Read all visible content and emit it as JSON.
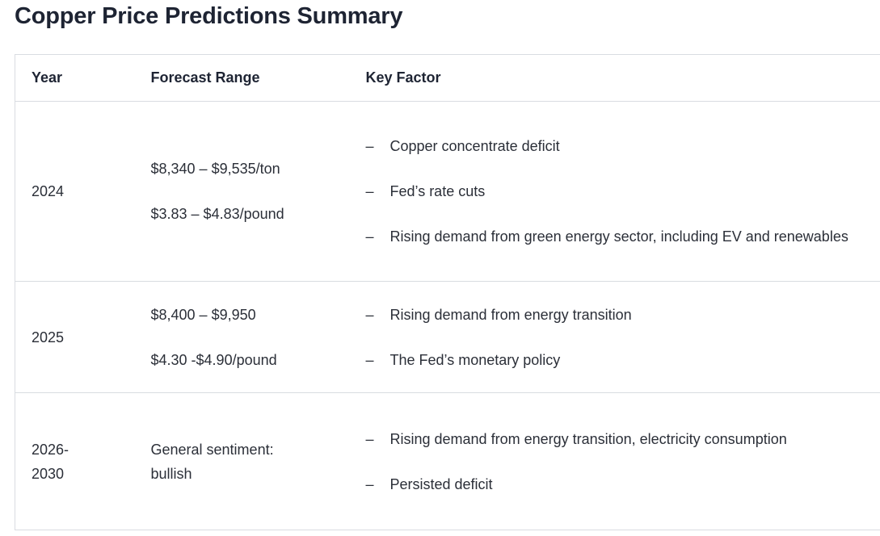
{
  "title": "Copper Price Predictions Summary",
  "table": {
    "headers": [
      "Year",
      "Forecast Range",
      "Key Factor"
    ],
    "bullet": "–",
    "rows": [
      {
        "year": "2024",
        "forecast": [
          "$8,340 – $9,535/ton",
          "$3.83 – $4.83/pound"
        ],
        "factors": [
          "Copper concentrate deficit",
          "Fed’s rate cuts",
          "Rising demand from green energy sector, including EV and renewables"
        ]
      },
      {
        "year": "2025",
        "forecast": [
          "$8,400 – $9,950",
          "$4.30 -$4.90/pound"
        ],
        "factors": [
          "Rising demand from energy transition",
          "The Fed’s monetary policy"
        ]
      },
      {
        "year": "2026-2030",
        "forecast": [
          "General sentiment: bullish"
        ],
        "factors": [
          "Rising demand from energy transition, electricity consumption",
          "Persisted deficit"
        ]
      }
    ]
  }
}
